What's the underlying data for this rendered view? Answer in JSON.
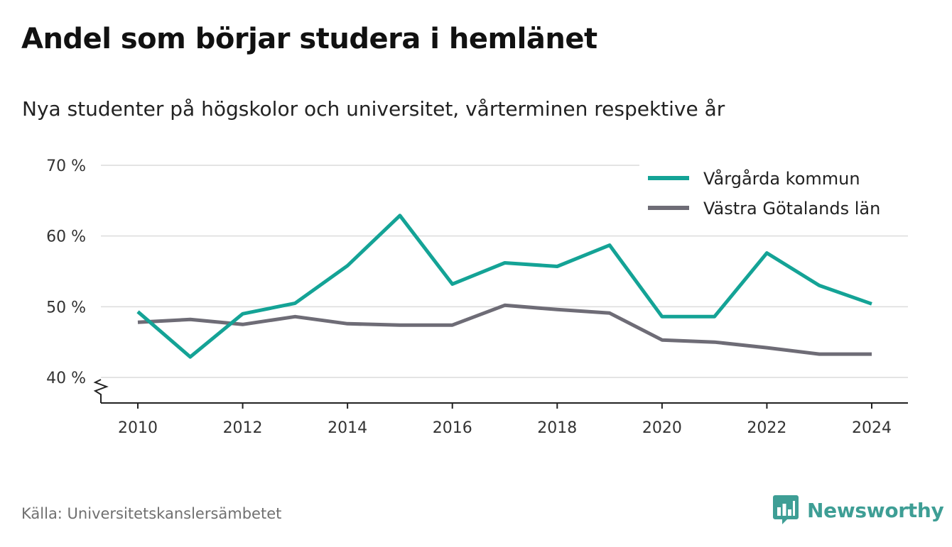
{
  "title": "Andel som börjar studera i hemlänet",
  "subtitle": "Nya studenter på högskolor och universitet, vårterminen respektive år",
  "source": "Källa: Universitetskanslersämbetet",
  "brand": {
    "name": "Newsworthy",
    "icon": "bar-chart-speech-bubble-icon",
    "color": "#3e9e95"
  },
  "chart_data": {
    "type": "line",
    "x": [
      2010,
      2011,
      2012,
      2013,
      2014,
      2015,
      2016,
      2017,
      2018,
      2019,
      2020,
      2021,
      2022,
      2023,
      2024
    ],
    "series": [
      {
        "name": "Vårgårda kommun",
        "color": "#14a396",
        "values": [
          49.3,
          42.9,
          49.0,
          50.5,
          55.8,
          62.9,
          53.2,
          56.2,
          55.7,
          58.7,
          48.6,
          48.6,
          57.6,
          53.0,
          50.4
        ]
      },
      {
        "name": "Västra Götalands län",
        "color": "#6e6c76",
        "values": [
          47.8,
          48.2,
          47.5,
          48.6,
          47.6,
          47.4,
          47.4,
          50.2,
          49.6,
          49.1,
          45.3,
          45.0,
          44.2,
          43.3,
          43.3
        ]
      }
    ],
    "yticks": [
      {
        "value": 40,
        "label": "40 %"
      },
      {
        "value": 50,
        "label": "50 %"
      },
      {
        "value": 60,
        "label": "60 %"
      },
      {
        "value": 70,
        "label": "70 %"
      }
    ],
    "xticks": [
      {
        "value": 2010,
        "label": "2010"
      },
      {
        "value": 2012,
        "label": "2012"
      },
      {
        "value": 2014,
        "label": "2014"
      },
      {
        "value": 2016,
        "label": "2016"
      },
      {
        "value": 2018,
        "label": "2018"
      },
      {
        "value": 2020,
        "label": "2020"
      },
      {
        "value": 2022,
        "label": "2022"
      },
      {
        "value": 2024,
        "label": "2024"
      }
    ],
    "ylim": [
      40,
      70
    ],
    "y_axis_break": true,
    "grid": true,
    "legend_position": "top-right"
  }
}
